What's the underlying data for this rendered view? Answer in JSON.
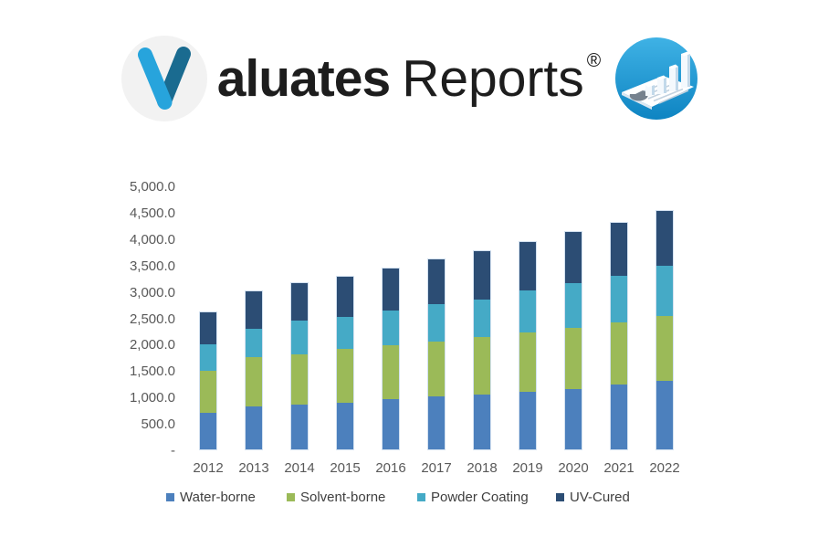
{
  "logo": {
    "initial": "V",
    "wordmark_bold": "aluates",
    "wordmark_regular": "Reports",
    "registered_mark": "®",
    "circle_color": "#f2f2f2",
    "v_left_color": "#27a4dc",
    "v_right_color": "#1a6b90",
    "badge_color_top": "#3fb2e5",
    "badge_color_bottom": "#0e84c2"
  },
  "chart_data": {
    "type": "bar",
    "stacked": true,
    "title": "",
    "xlabel": "",
    "ylabel": "",
    "grid": false,
    "legend_position": "bottom",
    "categories": [
      "2012",
      "2013",
      "2014",
      "2015",
      "2016",
      "2017",
      "2018",
      "2019",
      "2020",
      "2021",
      "2022"
    ],
    "series": [
      {
        "name": "Water-borne",
        "color": "#4C80BD",
        "values": [
          700,
          820,
          860,
          895,
          960,
          1005,
          1050,
          1105,
          1155,
          1230,
          1300
        ]
      },
      {
        "name": "Solvent-borne",
        "color": "#9BBA58",
        "values": [
          815,
          940,
          965,
          1035,
          1035,
          1060,
          1090,
          1120,
          1165,
          1190,
          1245
        ]
      },
      {
        "name": "Powder Coating",
        "color": "#45AAC6",
        "values": [
          500,
          545,
          645,
          605,
          670,
          720,
          725,
          805,
          850,
          895,
          955
        ]
      },
      {
        "name": "UV-Cured",
        "color": "#2C4D74",
        "values": [
          615,
          725,
          710,
          765,
          800,
          845,
          925,
          935,
          980,
          1015,
          1050
        ]
      }
    ],
    "totals": [
      2630,
      3030,
      3180,
      3300,
      3465,
      3630,
      3790,
      3965,
      4150,
      4330,
      4550
    ],
    "ylim": [
      0,
      5000
    ],
    "y_ticks": [
      {
        "value": 5000,
        "label": "5,000.0"
      },
      {
        "value": 4500,
        "label": "4,500.0"
      },
      {
        "value": 4000,
        "label": "4,000.0"
      },
      {
        "value": 3500,
        "label": "3,500.0"
      },
      {
        "value": 3000,
        "label": "3,000.0"
      },
      {
        "value": 2500,
        "label": "2,500.0"
      },
      {
        "value": 2000,
        "label": "2,000.0"
      },
      {
        "value": 1500,
        "label": "1,500.0"
      },
      {
        "value": 1000,
        "label": "1,000.0"
      },
      {
        "value": 500,
        "label": "500.0"
      },
      {
        "value": 0,
        "label": "-"
      }
    ]
  }
}
